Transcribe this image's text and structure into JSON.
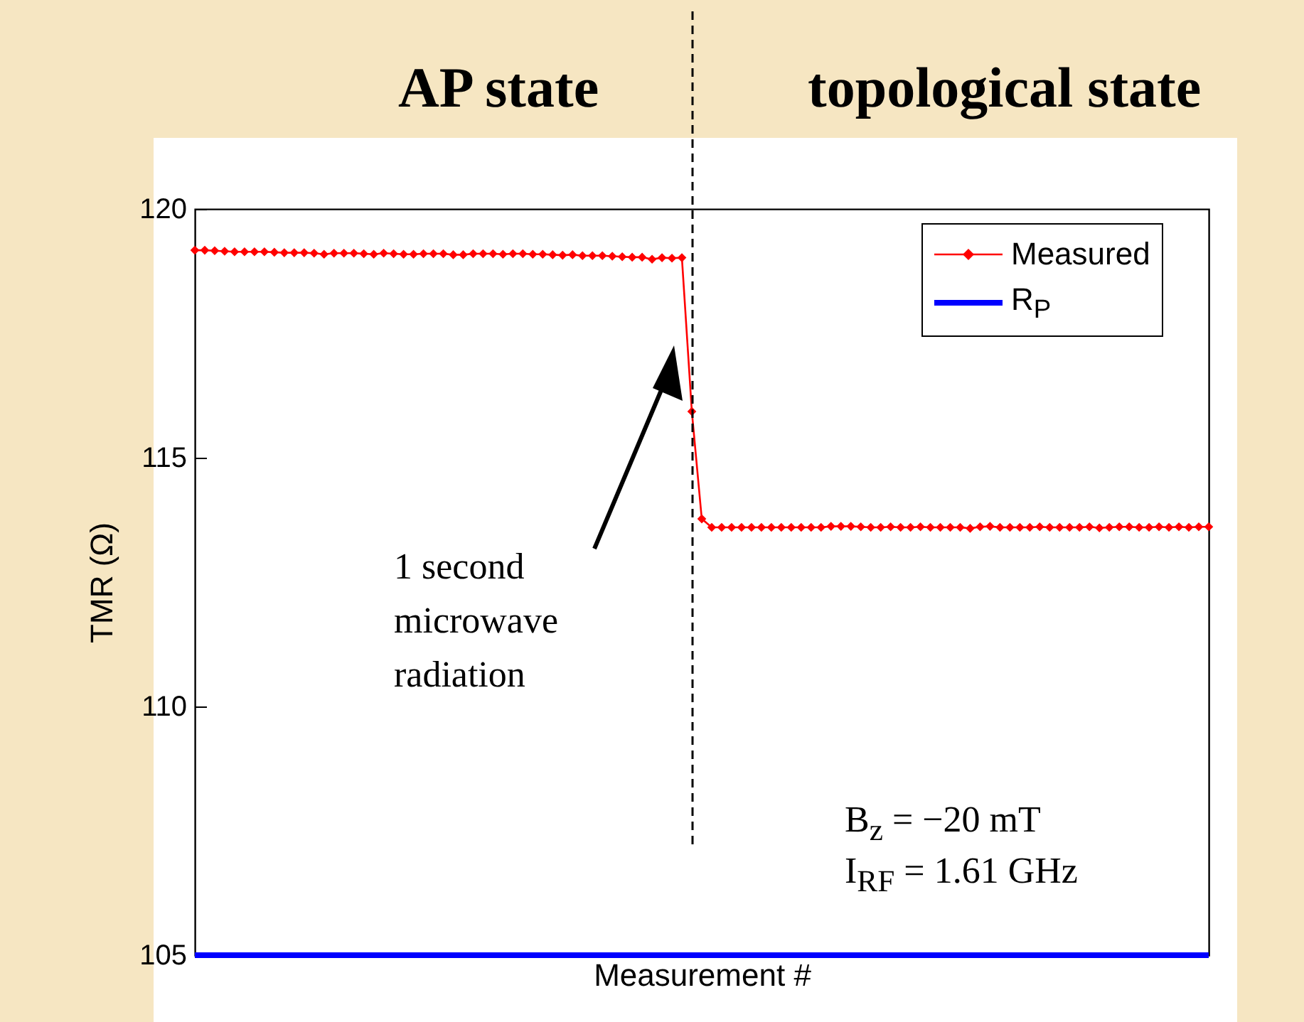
{
  "chart_data": {
    "type": "line",
    "xlabel": "Measurement #",
    "ylabel": "TMR (Ω)",
    "categories": [
      null,
      null,
      null,
      null,
      null,
      null,
      null,
      null,
      null,
      null,
      null,
      null,
      null,
      null,
      null,
      null,
      null,
      null,
      null,
      null,
      null,
      null,
      null,
      null,
      null,
      null,
      null,
      null,
      null,
      null,
      null,
      null,
      null,
      null,
      null,
      null,
      null,
      null,
      null,
      null,
      null,
      null,
      null,
      null,
      null,
      null,
      null,
      null,
      null,
      null,
      null,
      null,
      null,
      null,
      null,
      null,
      null,
      null,
      null,
      null,
      null,
      null,
      null,
      null,
      null,
      null,
      null,
      null,
      null,
      null,
      null,
      null,
      null,
      null,
      null,
      null,
      null,
      null,
      null,
      null,
      null,
      null,
      null,
      null,
      null,
      null,
      null,
      null,
      null,
      null,
      null,
      null,
      null,
      null,
      null,
      null,
      null,
      null,
      null,
      null,
      null,
      null,
      null
    ],
    "series": [
      {
        "name": "Measured",
        "color": "#ff0000",
        "marker": "diamond",
        "values": [
          119.17,
          119.17,
          119.16,
          119.15,
          119.14,
          119.14,
          119.14,
          119.14,
          119.13,
          119.12,
          119.12,
          119.12,
          119.11,
          119.09,
          119.11,
          119.11,
          119.11,
          119.1,
          119.09,
          119.11,
          119.1,
          119.09,
          119.09,
          119.1,
          119.1,
          119.1,
          119.08,
          119.08,
          119.1,
          119.1,
          119.1,
          119.09,
          119.1,
          119.1,
          119.09,
          119.09,
          119.08,
          119.07,
          119.08,
          119.06,
          119.06,
          119.06,
          119.05,
          119.04,
          119.03,
          119.03,
          118.99,
          119.02,
          119.01,
          119.02,
          115.93,
          113.77,
          113.6,
          113.6,
          113.6,
          113.6,
          113.6,
          113.6,
          113.6,
          113.6,
          113.6,
          113.6,
          113.6,
          113.6,
          113.62,
          113.62,
          113.62,
          113.61,
          113.6,
          113.6,
          113.61,
          113.6,
          113.6,
          113.61,
          113.6,
          113.6,
          113.6,
          113.6,
          113.58,
          113.61,
          113.62,
          113.6,
          113.6,
          113.6,
          113.6,
          113.61,
          113.6,
          113.6,
          113.6,
          113.6,
          113.61,
          113.59,
          113.6,
          113.61,
          113.61,
          113.6,
          113.6,
          113.61,
          113.6,
          113.61,
          113.6,
          113.61,
          113.61
        ]
      },
      {
        "name": "R$_{P}$",
        "color": "#0000ff",
        "marker": "none",
        "values": [
          105,
          105,
          105,
          105,
          105,
          105,
          105,
          105,
          105,
          105,
          105,
          105,
          105,
          105,
          105,
          105,
          105,
          105,
          105,
          105,
          105,
          105,
          105,
          105,
          105,
          105,
          105,
          105,
          105,
          105,
          105,
          105,
          105,
          105,
          105,
          105,
          105,
          105,
          105,
          105,
          105,
          105,
          105,
          105,
          105,
          105,
          105,
          105,
          105,
          105,
          105,
          105,
          105,
          105,
          105,
          105,
          105,
          105,
          105,
          105,
          105,
          105,
          105,
          105,
          105,
          105,
          105,
          105,
          105,
          105,
          105,
          105,
          105,
          105,
          105,
          105,
          105,
          105,
          105,
          105,
          105,
          105,
          105,
          105,
          105,
          105,
          105,
          105,
          105,
          105,
          105,
          105,
          105,
          105,
          105,
          105,
          105,
          105,
          105,
          105,
          105,
          105,
          105
        ]
      }
    ],
    "ylim": [
      105,
      120
    ],
    "yticks": [
      105,
      110,
      115,
      120
    ],
    "grid": false,
    "legend": "top right",
    "annotations": [
      "AP state",
      "topological state",
      "1 second microwave radiation",
      "B$_{z}$ = −20 mT",
      "I$_{RF}$ = 1.61 GHz"
    ]
  }
}
